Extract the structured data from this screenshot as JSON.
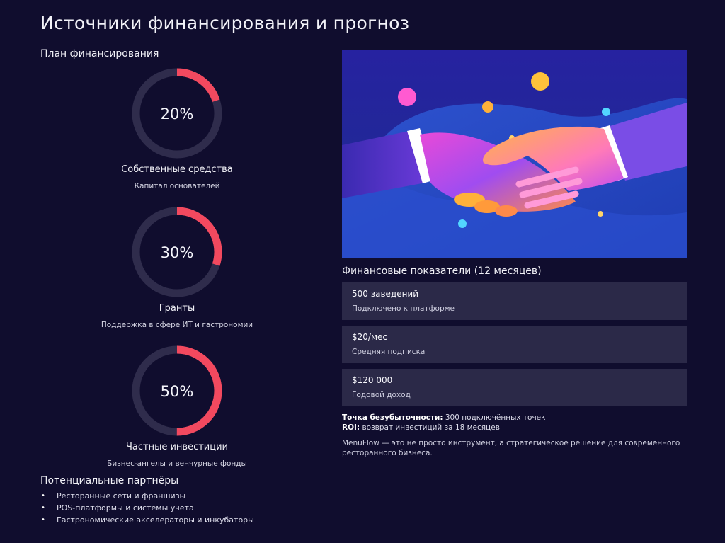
{
  "page": {
    "title": "Источники финансирования и прогноз"
  },
  "funding_plan": {
    "heading": "План финансирования",
    "ring_color": "#f2495f",
    "track_color": "#2f2c4c",
    "items": [
      {
        "percent_label": "20%",
        "fraction": 0.2,
        "label": "Собственные средства",
        "sublabel": "Капитал основателей"
      },
      {
        "percent_label": "30%",
        "fraction": 0.3,
        "label": "Гранты",
        "sublabel": "Поддержка в сфере ИТ и гастрономии"
      },
      {
        "percent_label": "50%",
        "fraction": 0.5,
        "label": "Частные инвестиции",
        "sublabel": "Бизнес-ангелы и венчурные фонды"
      }
    ]
  },
  "partners": {
    "heading": "Потенциальные партнёры",
    "items": [
      "Ресторанные сети и франшизы",
      "POS-платформы и системы учёта",
      "Гастрономические акселераторы и инкубаторы"
    ]
  },
  "hero": {
    "icon": "handshake-illustration"
  },
  "metrics": {
    "heading": "Финансовые показатели (12 месяцев)",
    "cards": [
      {
        "value": "500 заведений",
        "caption": "Подключено к платформе"
      },
      {
        "value": "$20/мес",
        "caption": "Средняя подписка"
      },
      {
        "value": "$120 000",
        "caption": "Годовой доход"
      }
    ]
  },
  "summary": {
    "breakeven_label": "Точка безубыточности:",
    "breakeven_value": " 300 подключённых точек",
    "roi_label": "ROI:",
    "roi_value": " возврат инвестиций за 18 месяцев",
    "closing": "MenuFlow — это не просто инструмент, а стратегическое решение для современного ресторанного бизнеса."
  }
}
